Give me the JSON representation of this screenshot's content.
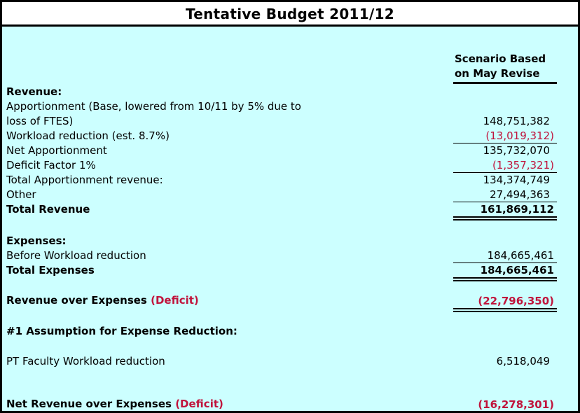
{
  "title": "Tentative Budget 2011/12",
  "column_header": {
    "line1": "Scenario Based",
    "line2": "on May Revise"
  },
  "revenue": {
    "heading": "Revenue:",
    "apportionment_line1": "Apportionment (Base, lowered from 10/11 by 5% due to",
    "apportionment_line2": "loss of FTES)",
    "apportionment_value": "148,751,382",
    "workload_label": "Workload reduction (est. 8.7%)",
    "workload_value": "(13,019,312)",
    "net_label": "Net Apportionment",
    "net_value": "135,732,070",
    "deficit_factor_label": "Deficit Factor 1%",
    "deficit_factor_value": "(1,357,321)",
    "total_apportionment_label": "Total Apportionment revenue:",
    "total_apportionment_value": "134,374,749",
    "other_label": "Other",
    "other_value": "27,494,363",
    "total_label": "Total Revenue",
    "total_value": "161,869,112"
  },
  "expenses": {
    "heading": "Expenses:",
    "before_label": "Before Workload reduction",
    "before_value": "184,665,461",
    "total_label": "Total Expenses",
    "total_value": "184,665,461"
  },
  "revenue_over_expenses": {
    "label": "Revenue over Expenses",
    "deficit_word": "(Deficit)",
    "value": "(22,796,350)"
  },
  "assumption": {
    "heading": "#1 Assumption for Expense Reduction:",
    "pt_label": "PT Faculty Workload reduction",
    "pt_value": "6,518,049"
  },
  "net_revenue": {
    "label": "Net Revenue over Expenses",
    "deficit_word": "(Deficit)",
    "value": "(16,278,301)"
  },
  "colors": {
    "background": "#ccffff",
    "negative": "#c0143c",
    "border": "#000000"
  }
}
